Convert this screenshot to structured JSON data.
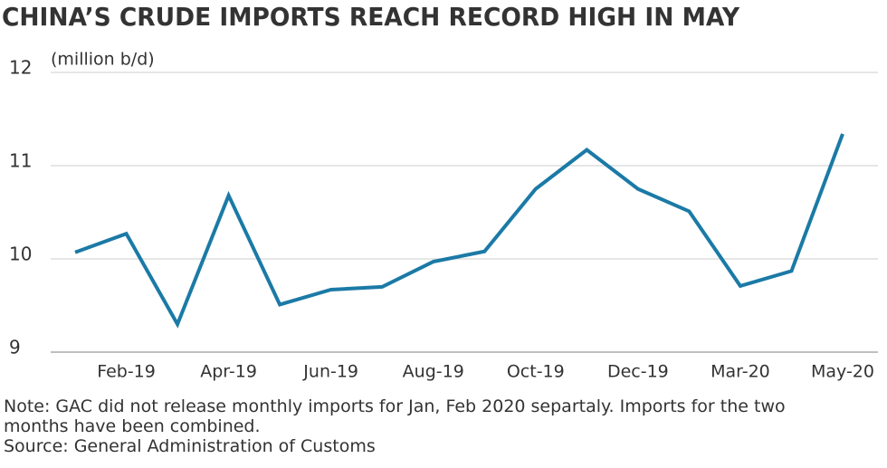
{
  "chart_data": {
    "type": "line",
    "title": "CHINA’S CRUDE IMPORTS REACH RECORD HIGH IN MAY",
    "y_label": "(million b/d)",
    "categories": [
      null,
      "Feb-19",
      null,
      "Apr-19",
      null,
      "Jun-19",
      null,
      "Aug-19",
      null,
      "Oct-19",
      null,
      "Dec-19",
      null,
      "Mar-20",
      null,
      "May-20"
    ],
    "series": [
      {
        "color": "#1b7aa6",
        "values": [
          10.07,
          10.27,
          9.3,
          10.68,
          9.51,
          9.67,
          9.7,
          9.97,
          10.08,
          10.75,
          11.17,
          10.75,
          10.51,
          9.71,
          9.87,
          11.34
        ]
      }
    ],
    "ylim": [
      9,
      12
    ],
    "yticks": [
      9,
      10,
      11,
      12
    ],
    "grid": true,
    "note": "Note: GAC did not release monthly imports for Jan, Feb 2020 separtaly. Imports for the two months have been combined.",
    "source": "Source: General Administration of Customs"
  }
}
